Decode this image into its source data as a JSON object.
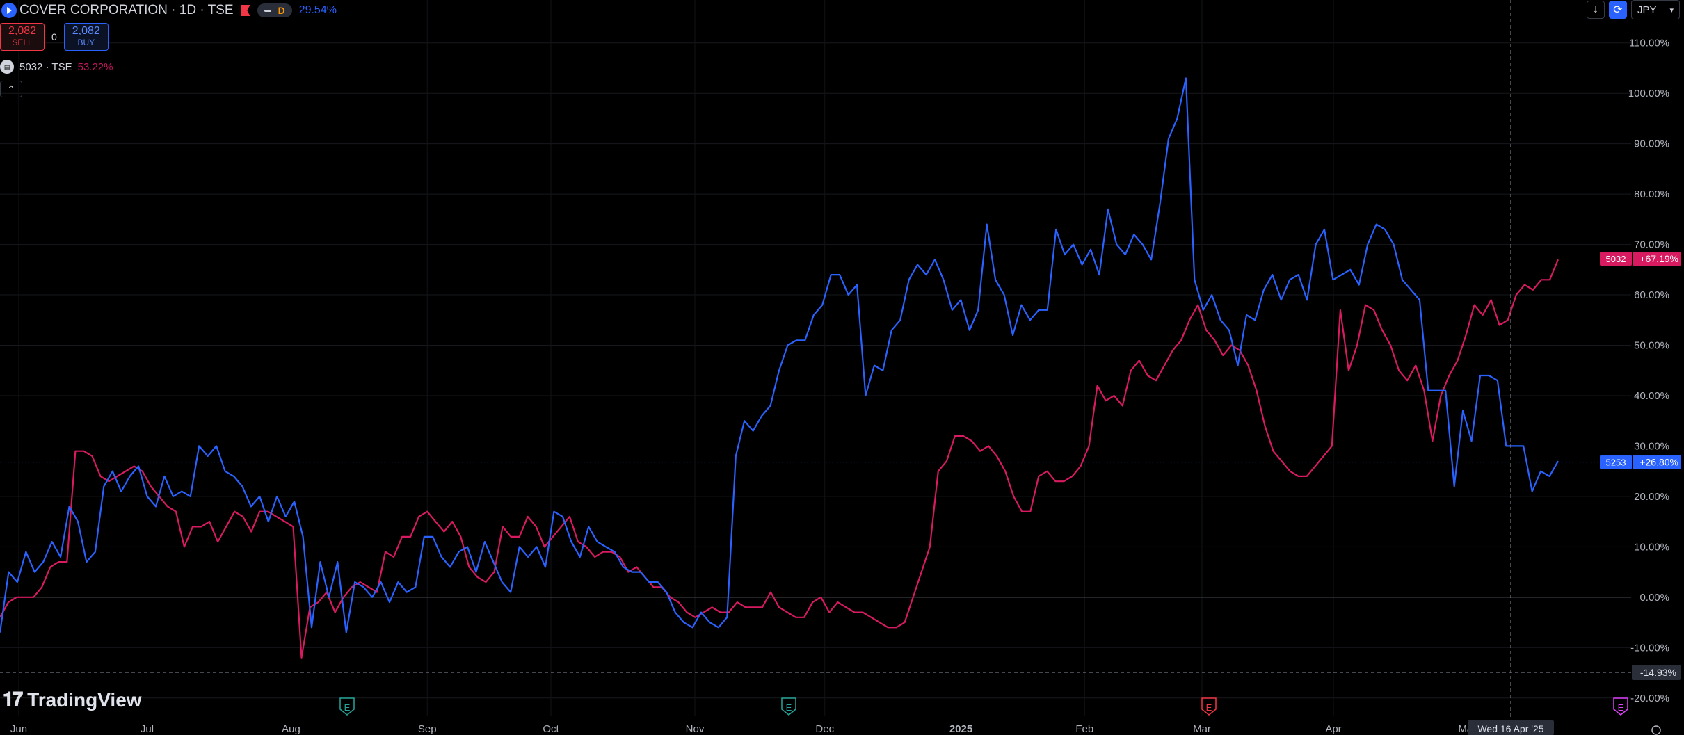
{
  "header": {
    "symbol_title": "COVER CORPORATION · 1D · TSE",
    "interval_badge": "D",
    "change_pct": "29.54%"
  },
  "trade": {
    "sell_price": "2,082",
    "sell_label": "SELL",
    "spread": "0",
    "buy_price": "2,082",
    "buy_label": "BUY"
  },
  "compare": {
    "symbol": "5032 · TSE",
    "change_pct": "53.22%"
  },
  "toolbar": {
    "currency": "JPY"
  },
  "branding": {
    "logo_text": "TradingView"
  },
  "colors": {
    "main_series": "#2962ff",
    "compare_series": "#d81b60",
    "background": "#000000"
  },
  "chart_data": {
    "type": "line",
    "y_axis_labels": [
      "110.00%",
      "100.00%",
      "90.00%",
      "80.00%",
      "70.00%",
      "60.00%",
      "50.00%",
      "40.00%",
      "30.00%",
      "20.00%",
      "10.00%",
      "0.00%",
      "-10.00%",
      "-20.00%"
    ],
    "ylim": [
      -25,
      113
    ],
    "x_axis_labels": [
      "Jun",
      "Jul",
      "Aug",
      "Sep",
      "Oct",
      "Nov",
      "Dec",
      "2025",
      "Feb",
      "Mar",
      "Apr",
      "May"
    ],
    "crosshair_date_label": "Wed 16 Apr '25",
    "crosshair_value_label": "-14.93%",
    "earnings_markers": [
      "E",
      "E",
      "E",
      "E"
    ],
    "series": [
      {
        "name": "5253",
        "last_label": "+26.80%",
        "last_value": 26.8,
        "values": [
          -7,
          5,
          3,
          9,
          5,
          7,
          11,
          8,
          18,
          15,
          7,
          9,
          22,
          25,
          21,
          24,
          26,
          20,
          18,
          24,
          20,
          21,
          20,
          30,
          28,
          30,
          25,
          24,
          22,
          18,
          20,
          15,
          20,
          16,
          19,
          12,
          -6,
          7,
          0,
          7,
          -7,
          3,
          2,
          0,
          3,
          -1,
          3,
          1,
          2,
          12,
          12,
          8,
          6,
          9,
          10,
          5,
          11,
          7,
          3,
          1,
          10,
          8,
          10,
          6,
          17,
          16,
          11,
          8,
          14,
          11,
          10,
          9,
          6,
          5,
          5,
          3,
          3,
          1,
          -3,
          -5,
          -6,
          -3,
          -5,
          -6,
          -4,
          28,
          35,
          33,
          36,
          38,
          45,
          50,
          51,
          51,
          56,
          58,
          64,
          64,
          60,
          62,
          40,
          46,
          45,
          53,
          55,
          63,
          66,
          64,
          67,
          63,
          57,
          59,
          53,
          57,
          74,
          63,
          60,
          52,
          58,
          55,
          57,
          57,
          73,
          68,
          70,
          66,
          69,
          64,
          77,
          70,
          68,
          72,
          70,
          67,
          78,
          91,
          95,
          103,
          63,
          57,
          60,
          55,
          53,
          46,
          56,
          55,
          61,
          64,
          59,
          63,
          64,
          59,
          70,
          73,
          63,
          64,
          65,
          62,
          70,
          74,
          73,
          70,
          63,
          61,
          59,
          41,
          41,
          41,
          22,
          37,
          31,
          44,
          44,
          43,
          30,
          30,
          30,
          21,
          25,
          24,
          27
        ]
      },
      {
        "name": "5032",
        "last_label": "+67.19%",
        "last_value": 67.19,
        "values": [
          -4,
          -1,
          0,
          0,
          0,
          2,
          6,
          7,
          7,
          29,
          29,
          28,
          24,
          23,
          24,
          25,
          26,
          25,
          22,
          20,
          18,
          17,
          10,
          14,
          14,
          15,
          11,
          14,
          17,
          16,
          13,
          17,
          17,
          16,
          15,
          14,
          -12,
          -2,
          -1,
          1,
          -3,
          0,
          2,
          3,
          2,
          1,
          9,
          8,
          12,
          12,
          16,
          17,
          15,
          13,
          15,
          12,
          6,
          4,
          3,
          5,
          14,
          12,
          12,
          16,
          14,
          10,
          12,
          14,
          16,
          11,
          10,
          8,
          9,
          9,
          8,
          5,
          6,
          4,
          2,
          2,
          0,
          -1,
          -3,
          -4,
          -3,
          -2,
          -3,
          -3,
          -1,
          -2,
          -2,
          -2,
          1,
          -2,
          -3,
          -4,
          -4,
          -1,
          0,
          -3,
          -1,
          -2,
          -3,
          -3,
          -4,
          -5,
          -6,
          -6,
          -5,
          0,
          5,
          10,
          25,
          27,
          32,
          32,
          31,
          29,
          30,
          28,
          25,
          20,
          17,
          17,
          24,
          25,
          23,
          23,
          24,
          26,
          30,
          42,
          39,
          40,
          38,
          45,
          47,
          44,
          43,
          46,
          49,
          51,
          55,
          58,
          53,
          51,
          48,
          50,
          49,
          46,
          41,
          34,
          29,
          27,
          25,
          24,
          24,
          26,
          28,
          30,
          57,
          45,
          50,
          58,
          57,
          53,
          50,
          45,
          43,
          46,
          41,
          31,
          40,
          44,
          47,
          52,
          58,
          56,
          59,
          54,
          55,
          60,
          62,
          61,
          63,
          63,
          67
        ]
      }
    ]
  }
}
